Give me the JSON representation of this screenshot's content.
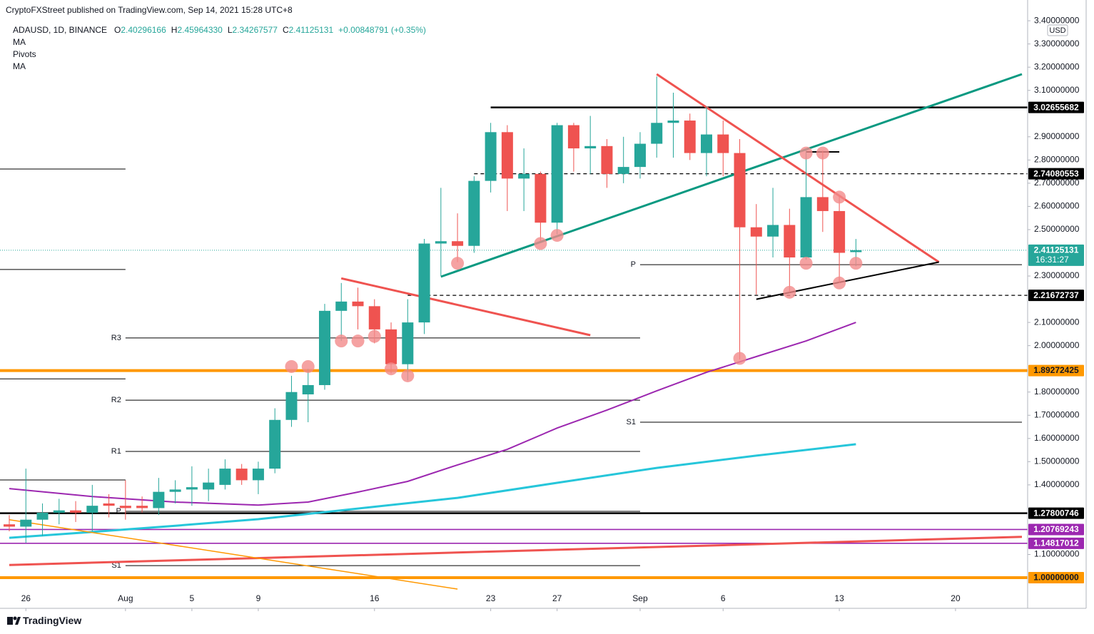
{
  "header": "CryptoFXStreet published on TradingView.com, Sep 14, 2021 15:28 UTC+8",
  "footer": "TradingView",
  "chart_data": {
    "type": "candlestick",
    "currency": "USD",
    "legend": {
      "symbol": "ADAUSD, 1D, BINANCE",
      "fields": [
        {
          "label": "O",
          "value": "2.40296166"
        },
        {
          "label": "H",
          "value": "2.45964330"
        },
        {
          "label": "L",
          "value": "2.34267577"
        },
        {
          "label": "C",
          "value": "2.41125131"
        }
      ],
      "change": "+0.00848791 (+0.35%)"
    },
    "indicators": [
      "MA",
      "Pivots",
      "MA"
    ],
    "up_color": "#26a69a",
    "down_color": "#ef5350",
    "x": [
      "2021-07-25",
      "2021-07-26",
      "2021-07-27",
      "2021-07-28",
      "2021-07-29",
      "2021-07-30",
      "2021-07-31",
      "2021-08-01",
      "2021-08-02",
      "2021-08-03",
      "2021-08-04",
      "2021-08-05",
      "2021-08-06",
      "2021-08-07",
      "2021-08-08",
      "2021-08-09",
      "2021-08-10",
      "2021-08-11",
      "2021-08-12",
      "2021-08-13",
      "2021-08-14",
      "2021-08-15",
      "2021-08-16",
      "2021-08-17",
      "2021-08-18",
      "2021-08-19",
      "2021-08-20",
      "2021-08-21",
      "2021-08-22",
      "2021-08-23",
      "2021-08-24",
      "2021-08-25",
      "2021-08-26",
      "2021-08-27",
      "2021-08-28",
      "2021-08-29",
      "2021-08-30",
      "2021-08-31",
      "2021-09-01",
      "2021-09-02",
      "2021-09-03",
      "2021-09-04",
      "2021-09-05",
      "2021-09-06",
      "2021-09-07",
      "2021-09-08",
      "2021-09-09",
      "2021-09-10",
      "2021-09-11",
      "2021-09-12",
      "2021-09-13",
      "2021-09-14"
    ],
    "open": [
      1.23,
      1.22,
      1.25,
      1.28,
      1.29,
      1.28,
      1.32,
      1.31,
      1.31,
      1.3,
      1.37,
      1.38,
      1.38,
      1.4,
      1.47,
      1.42,
      1.47,
      1.68,
      1.79,
      1.83,
      2.15,
      2.19,
      2.17,
      2.07,
      1.92,
      2.1,
      2.44,
      2.45,
      2.43,
      2.71,
      2.92,
      2.72,
      2.74,
      2.53,
      2.95,
      2.85,
      2.86,
      2.74,
      2.77,
      2.87,
      2.96,
      2.97,
      2.83,
      2.91,
      2.83,
      2.51,
      2.47,
      2.52,
      2.38,
      2.64,
      2.58,
      2.40296166
    ],
    "high": [
      1.27,
      1.47,
      1.32,
      1.34,
      1.33,
      1.4,
      1.36,
      1.42,
      1.35,
      1.43,
      1.42,
      1.48,
      1.47,
      1.51,
      1.49,
      1.5,
      1.73,
      1.87,
      1.9,
      2.18,
      2.27,
      2.25,
      2.2,
      2.1,
      2.2,
      2.46,
      2.68,
      2.57,
      2.73,
      2.96,
      2.95,
      2.85,
      2.75,
      2.96,
      2.96,
      2.99,
      2.89,
      2.9,
      2.92,
      3.16,
      3.09,
      3.0,
      3.03,
      2.97,
      2.89,
      2.61,
      2.68,
      2.59,
      2.85,
      2.84,
      2.65,
      2.4596433
    ],
    "low": [
      1.2,
      1.15,
      1.18,
      1.23,
      1.24,
      1.2,
      1.26,
      1.25,
      1.28,
      1.27,
      1.32,
      1.31,
      1.33,
      1.38,
      1.4,
      1.36,
      1.45,
      1.65,
      1.67,
      1.81,
      2.02,
      2.07,
      2.01,
      1.88,
      1.85,
      2.05,
      2.3,
      2.36,
      2.4,
      2.66,
      2.58,
      2.58,
      2.45,
      2.48,
      2.75,
      2.74,
      2.68,
      2.7,
      2.72,
      2.81,
      2.81,
      2.8,
      2.73,
      2.73,
      1.94,
      2.22,
      2.38,
      2.23,
      2.37,
      2.49,
      2.27,
      2.34267577
    ],
    "close": [
      1.22,
      1.25,
      1.28,
      1.29,
      1.28,
      1.31,
      1.31,
      1.3,
      1.3,
      1.37,
      1.38,
      1.39,
      1.41,
      1.47,
      1.42,
      1.47,
      1.68,
      1.8,
      1.83,
      2.15,
      2.19,
      2.17,
      2.07,
      1.92,
      2.1,
      2.44,
      2.45,
      2.43,
      2.71,
      2.92,
      2.72,
      2.74,
      2.53,
      2.95,
      2.85,
      2.86,
      2.74,
      2.77,
      2.87,
      2.96,
      2.97,
      2.83,
      2.91,
      2.83,
      2.51,
      2.47,
      2.52,
      2.38,
      2.64,
      2.58,
      2.4,
      2.41125131
    ],
    "xlim": [
      "2021-07-25",
      "2021-09-24"
    ],
    "ylim": [
      0.868,
      3.428
    ],
    "xticks": [
      {
        "value": "2021-07-26",
        "label": "26"
      },
      {
        "value": "2021-08-01",
        "label": "Aug"
      },
      {
        "value": "2021-08-05",
        "label": "5"
      },
      {
        "value": "2021-08-09",
        "label": "9"
      },
      {
        "value": "2021-08-16",
        "label": "16"
      },
      {
        "value": "2021-08-23",
        "label": "23"
      },
      {
        "value": "2021-08-27",
        "label": "27"
      },
      {
        "value": "2021-09-01",
        "label": "Sep"
      },
      {
        "value": "2021-09-06",
        "label": "6"
      },
      {
        "value": "2021-09-13",
        "label": "13"
      },
      {
        "value": "2021-09-20",
        "label": "20"
      }
    ],
    "yticks": [
      {
        "value": 3.4,
        "label": "3.40000000"
      },
      {
        "value": 3.3,
        "label": "3.30000000"
      },
      {
        "value": 3.2,
        "label": "3.20000000"
      },
      {
        "value": 3.1,
        "label": "3.10000000"
      },
      {
        "value": 2.9,
        "label": "2.90000000"
      },
      {
        "value": 2.8,
        "label": "2.80000000"
      },
      {
        "value": 2.7,
        "label": "2.70000000"
      },
      {
        "value": 2.6,
        "label": "2.60000000"
      },
      {
        "value": 2.5,
        "label": "2.50000000"
      },
      {
        "value": 2.3,
        "label": "2.30000000"
      },
      {
        "value": 2.1,
        "label": "2.10000000"
      },
      {
        "value": 2.0,
        "label": "2.00000000"
      },
      {
        "value": 1.8,
        "label": "1.80000000"
      },
      {
        "value": 1.7,
        "label": "1.70000000"
      },
      {
        "value": 1.6,
        "label": "1.60000000"
      },
      {
        "value": 1.5,
        "label": "1.50000000"
      },
      {
        "value": 1.4,
        "label": "1.40000000"
      },
      {
        "value": 1.1,
        "label": "1.10000000"
      }
    ],
    "moving_averages": [
      {
        "color": "#9c27b0",
        "x": [
          "2021-07-25",
          "2021-07-30",
          "2021-08-04",
          "2021-08-09",
          "2021-08-12",
          "2021-08-15",
          "2021-08-18",
          "2021-08-21",
          "2021-08-24",
          "2021-08-27",
          "2021-08-30",
          "2021-09-02",
          "2021-09-05",
          "2021-09-08",
          "2021-09-11",
          "2021-09-14"
        ],
        "values": [
          1.384,
          1.35,
          1.326,
          1.313,
          1.326,
          1.369,
          1.415,
          1.486,
          1.553,
          1.645,
          1.722,
          1.805,
          1.885,
          1.953,
          2.02,
          2.1
        ]
      },
      {
        "color": "#26c6da",
        "x": [
          "2021-07-25",
          "2021-07-30",
          "2021-08-04",
          "2021-08-09",
          "2021-08-15",
          "2021-08-21",
          "2021-08-27",
          "2021-09-02",
          "2021-09-08",
          "2021-09-14"
        ],
        "values": [
          1.172,
          1.197,
          1.224,
          1.252,
          1.298,
          1.344,
          1.409,
          1.473,
          1.526,
          1.575
        ]
      }
    ],
    "pivots": [
      {
        "from": "2021-07-25",
        "to": "2021-08-01",
        "levels": [
          {
            "value": 2.761
          },
          {
            "value": 2.328
          },
          {
            "value": 1.857
          },
          {
            "value": 1.421
          }
        ]
      },
      {
        "from": "2021-08-01",
        "to": "2021-09-01",
        "levels": [
          {
            "label": "R3",
            "value": 2.033
          },
          {
            "label": "R2",
            "value": 1.765
          },
          {
            "label": "R1",
            "value": 1.544
          },
          {
            "label": "P",
            "value": 1.286
          },
          {
            "label": "S1",
            "value": 1.052
          }
        ]
      },
      {
        "from": "2021-09-01",
        "to": "2021-09-24",
        "levels": [
          {
            "label": "P",
            "value": 2.349
          },
          {
            "label": "S1",
            "value": 1.67
          }
        ]
      }
    ],
    "trendlines": [
      {
        "color": "#089981",
        "x": [
          "2021-08-20",
          "2021-09-24"
        ],
        "y": [
          2.297,
          3.17
        ]
      },
      {
        "color": "#ef5350",
        "x": [
          "2021-09-02",
          "2021-09-19"
        ],
        "y": [
          3.17,
          2.36
        ]
      },
      {
        "color": "#000000",
        "x": [
          "2021-09-08",
          "2021-09-19"
        ],
        "y": [
          2.2,
          2.36
        ]
      },
      {
        "color": "#000000",
        "x": [
          "2021-09-11",
          "2021-09-13"
        ],
        "y": [
          2.835,
          2.835
        ]
      },
      {
        "color": "#ef5350",
        "x": [
          "2021-08-14",
          "2021-08-29"
        ],
        "y": [
          2.29,
          2.045
        ]
      },
      {
        "color": "#ef5350",
        "x": [
          "2021-07-25",
          "2021-09-24"
        ],
        "y": [
          1.055,
          1.176
        ]
      },
      {
        "color": "#ff9800",
        "style": "thin",
        "x": [
          "2021-07-25",
          "2021-08-21"
        ],
        "y": [
          1.25,
          0.951
        ]
      }
    ],
    "markers": {
      "color": "#f28b8b",
      "x": [
        "2021-08-11",
        "2021-08-12",
        "2021-08-14",
        "2021-08-15",
        "2021-08-16",
        "2021-08-17",
        "2021-08-18",
        "2021-08-21",
        "2021-08-26",
        "2021-08-27",
        "2021-09-07",
        "2021-09-10",
        "2021-09-11",
        "2021-09-11",
        "2021-09-12",
        "2021-09-13",
        "2021-09-13",
        "2021-09-14"
      ],
      "y": [
        1.91,
        1.91,
        2.02,
        2.02,
        2.04,
        1.9,
        1.87,
        2.355,
        2.44,
        2.475,
        1.945,
        2.23,
        2.83,
        2.355,
        2.83,
        2.64,
        2.27,
        2.355
      ]
    },
    "levels": [
      {
        "value": 3.02655682,
        "color": "#000000",
        "style": "bold",
        "from": "2021-08-23"
      },
      {
        "value": 2.74080553,
        "color": "#000000",
        "style": "dashed",
        "from": "2021-08-22"
      },
      {
        "value": 2.41125131,
        "color": "#26a69a",
        "style": "dotted",
        "countdown": "16:31:27"
      },
      {
        "value": 2.21672737,
        "color": "#000000",
        "style": "dashed",
        "from": "2021-08-18"
      },
      {
        "value": 1.89272425,
        "color": "#ff9800",
        "style": "thick"
      },
      {
        "value": 1.27800746,
        "color": "#000000",
        "style": "bold"
      },
      {
        "value": 1.20769243,
        "color": "#9c27b0",
        "style": "solid"
      },
      {
        "value": 1.14817012,
        "color": "#9c27b0",
        "style": "solid"
      },
      {
        "value": 1,
        "label": "1.00000000",
        "color": "#ff9800",
        "style": "thick"
      }
    ]
  }
}
